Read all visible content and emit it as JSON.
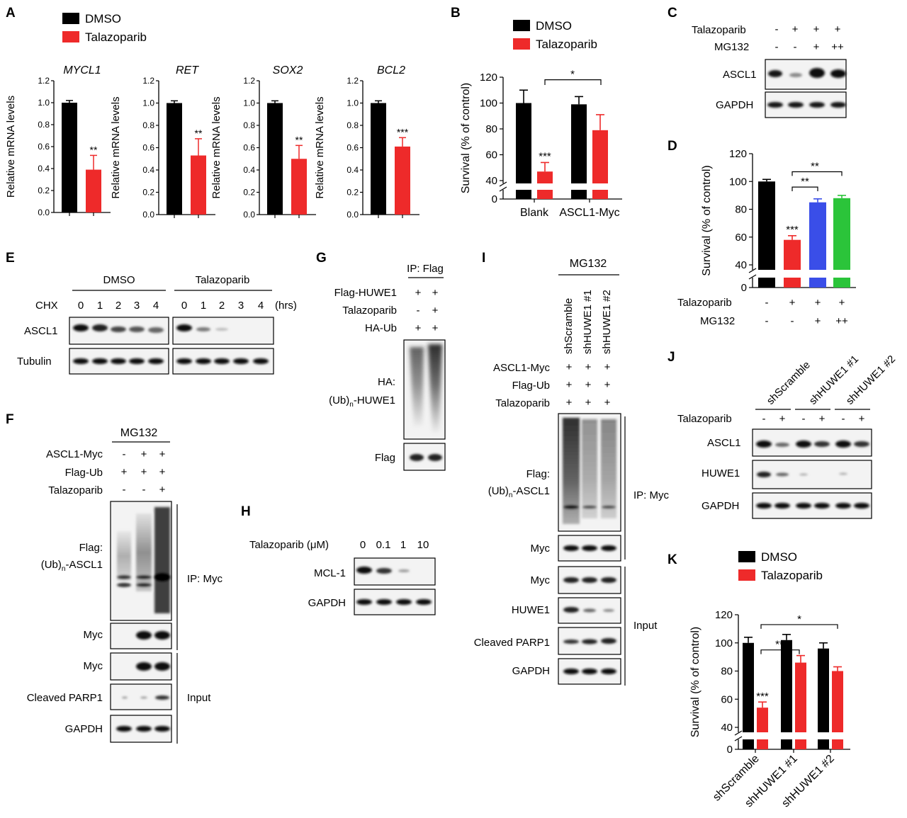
{
  "panels": {
    "A": "A",
    "B": "B",
    "C": "C",
    "D": "D",
    "E": "E",
    "F": "F",
    "G": "G",
    "H": "H",
    "I": "I",
    "J": "J",
    "K": "K"
  },
  "colors": {
    "dmso": "#000000",
    "talazoparib": "#ee2a2a",
    "mg132_low": "#3a4ee8",
    "mg132_high": "#2bc43a",
    "blot_bg": "#f4f4f4",
    "band": "#141414"
  },
  "legend": {
    "dmso": "DMSO",
    "talazoparib": "Talazoparib"
  },
  "panelA": {
    "ylabel": "Relative mRNA levels",
    "charts": [
      {
        "gene": "MYCL1",
        "values": [
          1.0,
          0.39
        ],
        "errors": [
          0.02,
          0.13
        ],
        "sig": "**"
      },
      {
        "gene": "RET",
        "values": [
          1.0,
          0.53
        ],
        "errors": [
          0.02,
          0.15
        ],
        "sig": "**"
      },
      {
        "gene": "SOX2",
        "values": [
          1.0,
          0.5
        ],
        "errors": [
          0.02,
          0.12
        ],
        "sig": "**"
      },
      {
        "gene": "BCL2",
        "values": [
          1.0,
          0.61
        ],
        "errors": [
          0.02,
          0.08
        ],
        "sig": "***"
      }
    ],
    "ticks": [
      "0.0",
      "0.2",
      "0.4",
      "0.6",
      "0.8",
      "1.0",
      "1.2"
    ]
  },
  "chart_data": [
    {
      "type": "bar",
      "title": "MYCL1",
      "categories": [
        "DMSO",
        "Talazoparib"
      ],
      "values": [
        1.0,
        0.39
      ],
      "ylabel": "Relative mRNA levels",
      "ylim": [
        0,
        1.2
      ]
    },
    {
      "type": "bar",
      "title": "RET",
      "categories": [
        "DMSO",
        "Talazoparib"
      ],
      "values": [
        1.0,
        0.53
      ],
      "ylabel": "Relative mRNA levels",
      "ylim": [
        0,
        1.2
      ]
    },
    {
      "type": "bar",
      "title": "SOX2",
      "categories": [
        "DMSO",
        "Talazoparib"
      ],
      "values": [
        1.0,
        0.5
      ],
      "ylabel": "Relative mRNA levels",
      "ylim": [
        0,
        1.2
      ]
    },
    {
      "type": "bar",
      "title": "BCL2",
      "categories": [
        "DMSO",
        "Talazoparib"
      ],
      "values": [
        1.0,
        0.61
      ],
      "ylabel": "Relative mRNA levels",
      "ylim": [
        0,
        1.2
      ]
    },
    {
      "type": "bar",
      "title": "B",
      "categories": [
        "Blank",
        "ASCL1-Myc"
      ],
      "series": [
        {
          "name": "DMSO",
          "values": [
            100,
            99
          ]
        },
        {
          "name": "Talazoparib",
          "values": [
            47,
            79
          ]
        }
      ],
      "ylabel": "Survival (% of control)",
      "ylim": [
        0,
        120
      ]
    },
    {
      "type": "bar",
      "title": "D",
      "categories": [
        "DMSO",
        "Talazoparib",
        "Talazoparib + MG132",
        "Talazoparib + MG132 ++"
      ],
      "values": [
        100,
        58,
        85,
        88
      ],
      "ylabel": "Survival (% of control)",
      "ylim": [
        0,
        120
      ]
    },
    {
      "type": "bar",
      "title": "K",
      "categories": [
        "shScramble",
        "shHUWE1 #1",
        "shHUWE1 #2"
      ],
      "series": [
        {
          "name": "DMSO",
          "values": [
            100,
            102,
            96
          ]
        },
        {
          "name": "Talazoparib",
          "values": [
            54,
            86,
            80
          ]
        }
      ],
      "ylabel": "Survival (% of control)",
      "ylim": [
        0,
        120
      ]
    }
  ],
  "panelB": {
    "ylabel": "Survival (% of control)",
    "categories": [
      "Blank",
      "ASCL1-Myc"
    ],
    "ticks": [
      "0",
      "40",
      "60",
      "80",
      "100",
      "120"
    ],
    "sig_main": "***",
    "sig_bracket": "*"
  },
  "panelC": {
    "rows": [
      {
        "label": "Talazoparib",
        "marks": [
          "-",
          "+",
          "+",
          "+"
        ]
      },
      {
        "label": "MG132",
        "marks": [
          "-",
          "-",
          "+",
          "++"
        ]
      }
    ],
    "blots": [
      "ASCL1",
      "GAPDH"
    ]
  },
  "panelD": {
    "ylabel": "Survival (% of control)",
    "ticks": [
      "0",
      "40",
      "60",
      "80",
      "100",
      "120"
    ],
    "sig_main": "***",
    "sig_b1": "**",
    "sig_b2": "**",
    "rows": [
      {
        "label": "Talazoparib",
        "marks": [
          "-",
          "+",
          "+",
          "+"
        ]
      },
      {
        "label": "MG132",
        "marks": [
          "-",
          "-",
          "+",
          "++"
        ]
      }
    ]
  },
  "panelE": {
    "groups": [
      "DMSO",
      "Talazoparib"
    ],
    "chx_label": "CHX",
    "times": [
      "0",
      "1",
      "2",
      "3",
      "4"
    ],
    "unit": "(hrs)",
    "blots": [
      "ASCL1",
      "Tubulin"
    ]
  },
  "panelF": {
    "header": "MG132",
    "rows": [
      {
        "label": "ASCL1-Myc",
        "marks": [
          "-",
          "+",
          "+"
        ]
      },
      {
        "label": "Flag-Ub",
        "marks": [
          "+",
          "+",
          "+"
        ]
      },
      {
        "label": "Talazoparib",
        "marks": [
          "-",
          "-",
          "+"
        ]
      }
    ],
    "flag_label": "Flag:",
    "ub_label": "(Ub)",
    "ub_sub": "n",
    "ub_target": "-ASCL1",
    "ip": "IP: Myc",
    "myc": "Myc",
    "cleaved": "Cleaved PARP1",
    "gapdh": "GAPDH",
    "input": "Input"
  },
  "panelG": {
    "header": "IP: Flag",
    "rows": [
      {
        "label": "Flag-HUWE1",
        "marks": [
          "+",
          "+"
        ]
      },
      {
        "label": "Talazoparib",
        "marks": [
          "-",
          "+"
        ]
      },
      {
        "label": "HA-Ub",
        "marks": [
          "+",
          "+"
        ]
      }
    ],
    "ha_label": "HA:",
    "ub_label": "(Ub)",
    "ub_sub": "n",
    "ub_target": "-HUWE1",
    "flag": "Flag"
  },
  "panelH": {
    "conc_label": "Talazoparib (μM)",
    "concs": [
      "0",
      "0.1",
      "1",
      "10"
    ],
    "blots": [
      "MCL-1",
      "GAPDH"
    ]
  },
  "panelI": {
    "header": "MG132",
    "lanes": [
      "shScramble",
      "shHUWE1 #1",
      "shHUWE1 #2"
    ],
    "rows": [
      {
        "label": "ASCL1-Myc",
        "marks": [
          "+",
          "+",
          "+"
        ]
      },
      {
        "label": "Flag-Ub",
        "marks": [
          "+",
          "+",
          "+"
        ]
      },
      {
        "label": "Talazoparib",
        "marks": [
          "+",
          "+",
          "+"
        ]
      }
    ],
    "flag_label": "Flag:",
    "ub_label": "(Ub)",
    "ub_sub": "n",
    "ub_target": "-ASCL1",
    "ip": "IP: Myc",
    "myc": "Myc",
    "myc2": "Myc",
    "huwe1": "HUWE1",
    "cleaved": "Cleaved PARP1",
    "gapdh": "GAPDH",
    "input": "Input"
  },
  "panelJ": {
    "groups": [
      "shScramble",
      "shHUWE1 #1",
      "shHUWE1 #2"
    ],
    "tal_label": "Talazoparib",
    "marks": [
      "-",
      "+",
      "-",
      "+",
      "-",
      "+"
    ],
    "blots": [
      "ASCL1",
      "HUWE1",
      "GAPDH"
    ]
  },
  "panelK": {
    "ylabel": "Survival (% of control)",
    "ticks": [
      "0",
      "40",
      "60",
      "80",
      "100",
      "120"
    ],
    "categories": [
      "shScramble",
      "shHUWE1 #1",
      "shHUWE1 #2"
    ],
    "sig_main": "***",
    "sig_b1": "**",
    "sig_b2": "*"
  }
}
